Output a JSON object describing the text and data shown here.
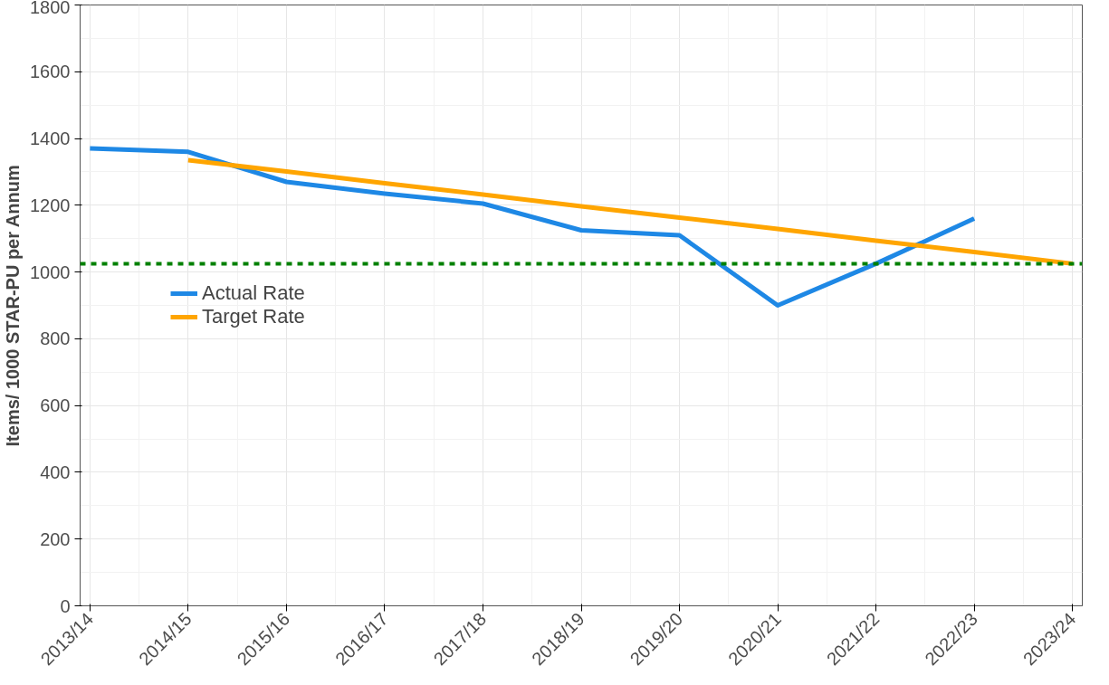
{
  "chart_data": {
    "type": "line",
    "ylabel": "Items/ 1000 STAR-PU per Annum",
    "categories": [
      "2013/14",
      "2014/15",
      "2015/16",
      "2016/17",
      "2017/18",
      "2018/19",
      "2019/20",
      "2020/21",
      "2021/22",
      "2022/23",
      "2023/24"
    ],
    "series": [
      {
        "name": "Actual Rate",
        "color": "#1e88e5",
        "values": [
          1370,
          1360,
          1270,
          1235,
          1205,
          1125,
          1110,
          900,
          1025,
          1160,
          null
        ]
      },
      {
        "name": "Target Rate",
        "color": "#ffa500",
        "values": [
          null,
          1335,
          1301,
          1266,
          1232,
          1197,
          1163,
          1129,
          1094,
          1060,
          1025
        ]
      }
    ],
    "ylim": [
      0,
      1800
    ],
    "yticks": [
      0,
      200,
      400,
      600,
      800,
      1000,
      1200,
      1400,
      1600,
      1800
    ],
    "ref_lines": [
      {
        "axis": "y",
        "value": 1025,
        "color": "#008000",
        "line_style": "dashed"
      }
    ],
    "grid": true,
    "legend": "left",
    "line_style": "solid",
    "marker": "none"
  }
}
